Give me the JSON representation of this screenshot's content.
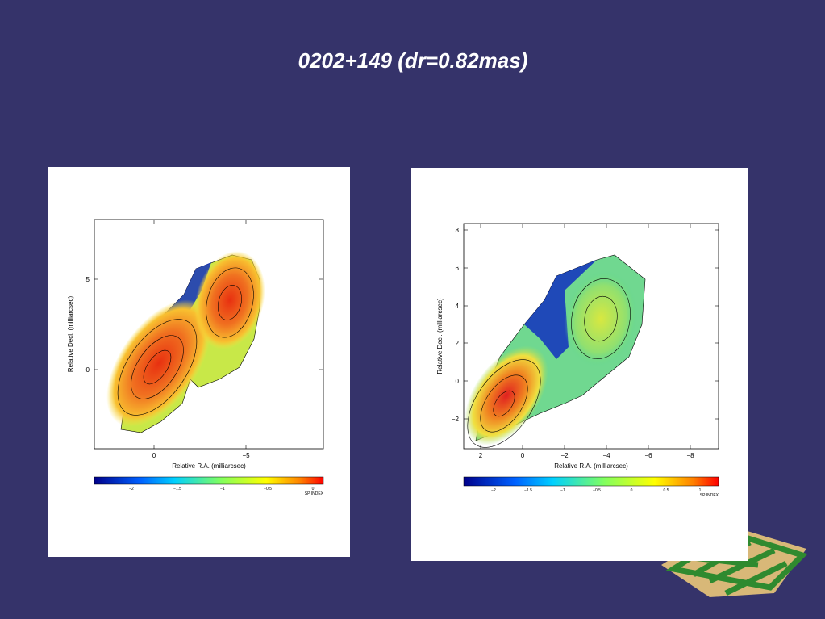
{
  "title": "0202+149 (dr=0.82mas)",
  "panels": [
    {
      "x_label": "Relative R.A. (milliarcsec)",
      "y_label": "Relative Decl. (milliarcsec)",
      "x_ticks": [
        "0",
        "−5"
      ],
      "y_ticks": [
        "5",
        "0"
      ],
      "colorbar_ticks": [
        "−2",
        "−1.5",
        "−1",
        "−0.5",
        "0"
      ],
      "colorbar_label": "SP INDEX"
    },
    {
      "x_label": "Relative R.A. (milliarcsec)",
      "y_label": "Relative Decl. (milliarcsec)",
      "x_ticks": [
        "2",
        "0",
        "−2",
        "−4",
        "−6",
        "−8"
      ],
      "y_ticks": [
        "8",
        "6",
        "4",
        "2",
        "0",
        "−2"
      ],
      "colorbar_ticks": [
        "−2",
        "−1.5",
        "−1",
        "−0.5",
        "0",
        "0.5",
        "1"
      ],
      "colorbar_label": "SP INDEX"
    }
  ]
}
